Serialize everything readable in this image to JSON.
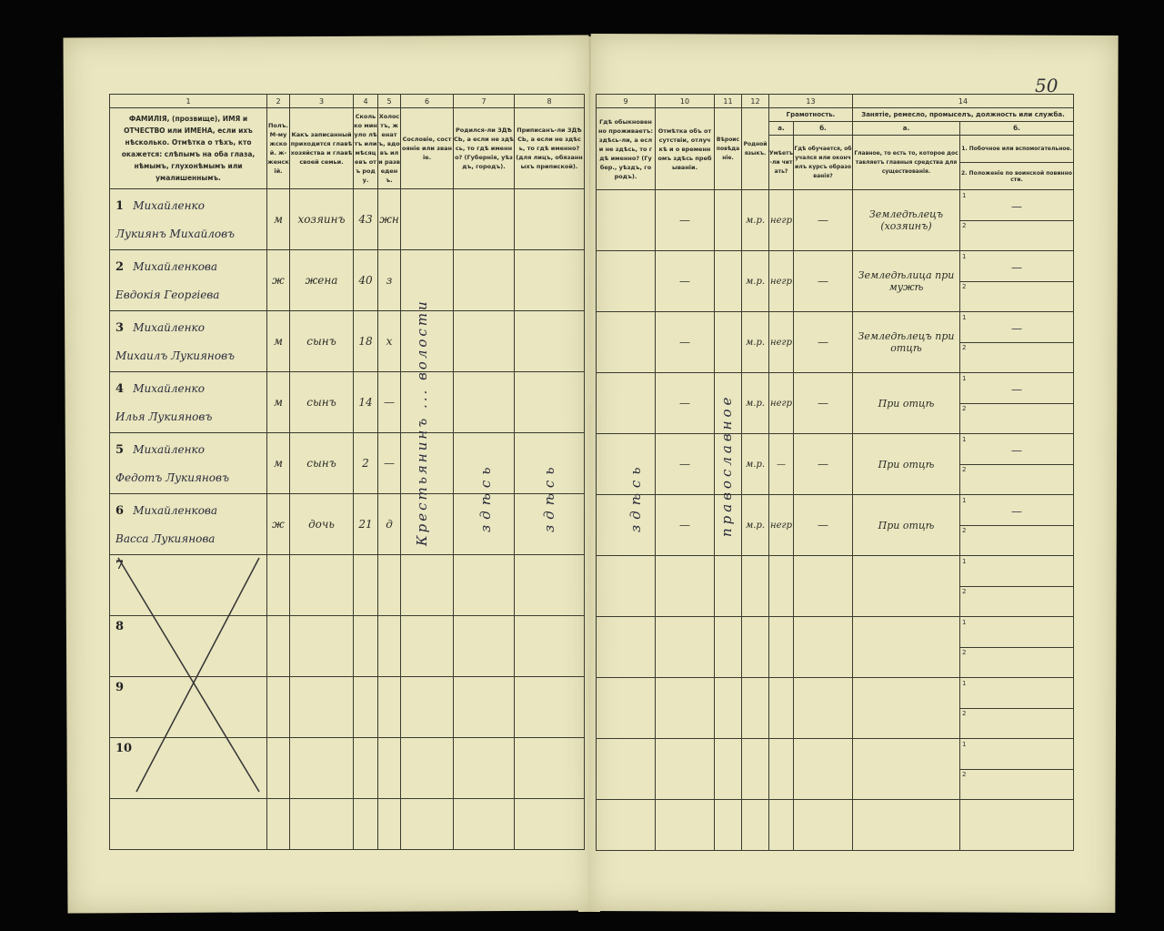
{
  "page_number": "50",
  "left_headers": {
    "numbers": [
      "1",
      "2",
      "3",
      "4",
      "5",
      "6",
      "7",
      "8"
    ],
    "texts": [
      "ФАМИЛІЯ, (прозвище), ИМЯ и ОТЧЕСТВО или ИМЕНА, если ихъ нѣсколько. Отмѣтка о тѣхъ, кто окажется: слѣпымъ на оба глаза, нѣмымъ, глухонѣмымъ или умалишеннымъ.",
      "Полъ. М-мужской. ж-женскій.",
      "Какъ записанный приходится главѣ хозяйства и главѣ своей семьи.",
      "Сколько минуло лѣтъ или мѣсяцевъ отъ роду.",
      "Холостъ, женатъ, вдовъ или разведенъ.",
      "Сословіе, состояніе или званіе.",
      "Родился-ли ЗДѢСЬ, а если не здѣсь, то гдѣ именно? (Губернія, уѣздъ, городъ).",
      "Приписанъ-ли ЗДѢСЬ, а если не здѣсь, то гдѣ именно? (для лицъ, обязанныхъ припиской)."
    ]
  },
  "right_headers": {
    "numbers": [
      "9",
      "10",
      "11",
      "12",
      "13",
      "14"
    ],
    "col9": "Гдѣ обыкновенно проживаетъ: здѣсь-ли, а если не здѣсь, то гдѣ именно? (Губер., уѣздъ, городъ).",
    "col10": "Отмѣтка объ отсутствіи, отлучкѣ и о временномъ здѣсь пребываніи.",
    "col11": "Вѣроисповѣданіе.",
    "col12": "Родной языкъ.",
    "col13": "Грамотность.",
    "col13a_letter": "а.",
    "col13a": "Умѣетъ-ли читать?",
    "col13b_letter": "б.",
    "col13b": "Гдѣ обучается, обучался или окончилъ курсъ образованія?",
    "col14": "Занятіе, ремесло, промыселъ, должность или служба.",
    "col14a_letter": "а.",
    "col14a": "Главное, то есть то, которое доставляетъ главныя средства для существованія.",
    "col14b_letter": "б.",
    "col14b_1": "1. Побочное или вспомогательное.",
    "col14b_2": "2. Положеніе по воинской повинности."
  },
  "persons": [
    {
      "num": "1",
      "surname": "Михайленко",
      "name": "Лукиянъ Михайловъ",
      "sex": "м",
      "relation": "хозяинъ",
      "age": "43",
      "marital": "жн",
      "language": "м.р.",
      "literacy": "негр",
      "schooling": "—",
      "absence": "—",
      "occupation": "Земледѣлецъ (хозяинъ)",
      "side": "—"
    },
    {
      "num": "2",
      "surname": "Михайленкова",
      "name": "Евдокія Георгіева",
      "sex": "ж",
      "relation": "жена",
      "age": "40",
      "marital": "з",
      "language": "м.р.",
      "literacy": "негр",
      "schooling": "—",
      "absence": "—",
      "occupation": "Земледѣлица при мужѣ",
      "side": "—"
    },
    {
      "num": "3",
      "surname": "Михайленко",
      "name": "Михаилъ Лукияновъ",
      "sex": "м",
      "relation": "сынъ",
      "age": "18",
      "marital": "х",
      "language": "м.р.",
      "literacy": "негр",
      "schooling": "—",
      "absence": "—",
      "occupation": "Земледѣлецъ при отцѣ",
      "side": "—"
    },
    {
      "num": "4",
      "surname": "Михайленко",
      "name": "Илья Лукияновъ",
      "sex": "м",
      "relation": "сынъ",
      "age": "14",
      "marital": "—",
      "language": "м.р.",
      "literacy": "негр",
      "schooling": "—",
      "absence": "—",
      "occupation": "При отцѣ",
      "side": "—"
    },
    {
      "num": "5",
      "surname": "Михайленко",
      "name": "Федотъ Лукияновъ",
      "sex": "м",
      "relation": "сынъ",
      "age": "2",
      "marital": "—",
      "language": "м.р.",
      "literacy": "—",
      "schooling": "—",
      "absence": "—",
      "occupation": "При отцѣ",
      "side": "—"
    },
    {
      "num": "6",
      "surname": "Михайленкова",
      "name": "Васса Лукиянова",
      "sex": "ж",
      "relation": "дочь",
      "age": "21",
      "marital": "д",
      "language": "м.р.",
      "literacy": "негр",
      "schooling": "—",
      "absence": "—",
      "occupation": "При отцѣ",
      "side": "—"
    }
  ],
  "empty_rows": [
    "7",
    "8",
    "9",
    "10"
  ],
  "vertical_entries": {
    "estate": "Крестьянинъ ... волости",
    "born_here": "здѣсь",
    "registered_here": "здѣсь",
    "lives_here": "здѣсь",
    "religion": "православное"
  },
  "sub_numbers": [
    "1",
    "2"
  ],
  "colors": {
    "paper": "#e9e6c0",
    "ink": "#2a2a3a",
    "background": "#050505"
  }
}
